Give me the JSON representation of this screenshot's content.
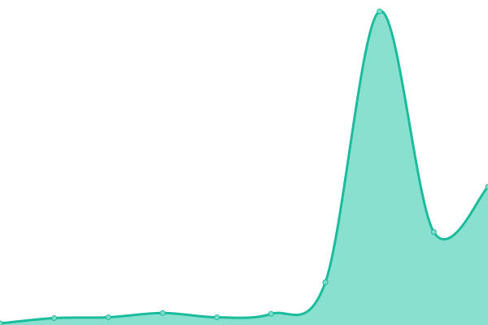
{
  "chart_data": {
    "type": "area",
    "x": [
      0,
      1,
      2,
      3,
      4,
      5,
      6,
      7,
      8,
      9
    ],
    "values": [
      2,
      8.5,
      9.5,
      14.7,
      9.5,
      13.7,
      52.5,
      386,
      114.5,
      170
    ],
    "ylim": [
      0,
      400
    ],
    "xlim": [
      0,
      9
    ],
    "grid": false,
    "smooth": true,
    "colors": {
      "line": "#1abc9c",
      "fill": "#89e0cf",
      "marker": "#7fdcc8"
    }
  }
}
